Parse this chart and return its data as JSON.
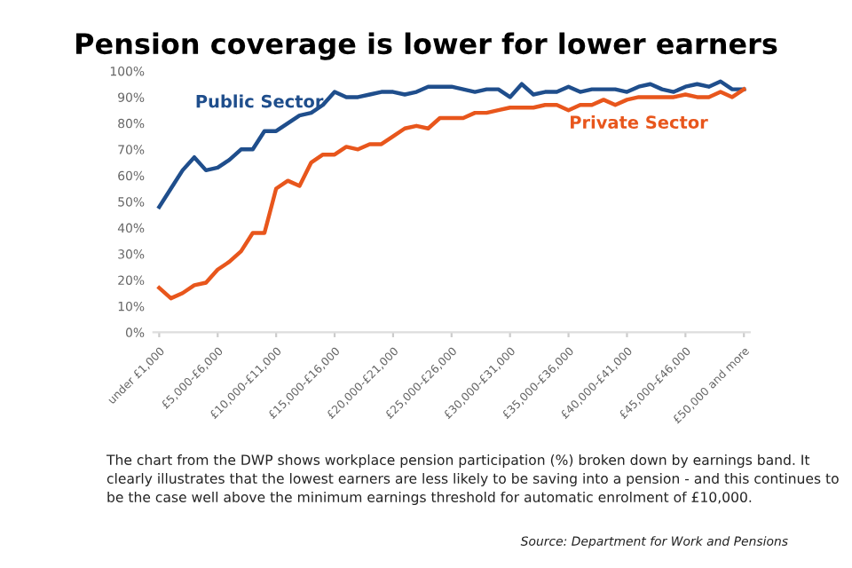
{
  "chart_data": {
    "type": "line",
    "title": "Pension coverage is lower for lower earners",
    "categories": [
      "under £1,000",
      null,
      null,
      null,
      null,
      "£5,000-£6,000",
      null,
      null,
      null,
      null,
      "£10,000-£11,000",
      null,
      null,
      null,
      null,
      "£15,000-£16,000",
      null,
      null,
      null,
      null,
      "£20,000-£21,000",
      null,
      null,
      null,
      null,
      "£25,000-£26,000",
      null,
      null,
      null,
      null,
      "£30,000-£31,000",
      null,
      null,
      null,
      null,
      "£35,000-£36,000",
      null,
      null,
      null,
      null,
      "£40,000-£41,000",
      null,
      null,
      null,
      null,
      "£45,000-£46,000",
      null,
      null,
      null,
      null,
      "£50,000 and more"
    ],
    "series": [
      {
        "name": "Public Sector",
        "color": "#1f4e8c",
        "values": [
          48,
          55,
          62,
          67,
          62,
          63,
          66,
          70,
          70,
          77,
          77,
          80,
          83,
          84,
          87,
          92,
          90,
          90,
          91,
          92,
          92,
          91,
          92,
          94,
          94,
          94,
          93,
          92,
          93,
          93,
          90,
          95,
          91,
          92,
          92,
          94,
          92,
          93,
          93,
          93,
          92,
          94,
          95,
          93,
          92,
          94,
          95,
          94,
          96,
          93,
          93
        ]
      },
      {
        "name": "Private Sector",
        "color": "#e8561c",
        "values": [
          17,
          13,
          15,
          18,
          19,
          24,
          27,
          31,
          38,
          38,
          55,
          58,
          56,
          65,
          68,
          68,
          71,
          70,
          72,
          72,
          75,
          78,
          79,
          78,
          82,
          82,
          82,
          84,
          84,
          85,
          86,
          86,
          86,
          87,
          87,
          85,
          87,
          87,
          89,
          87,
          89,
          90,
          90,
          90,
          90,
          91,
          90,
          90,
          92,
          90,
          93
        ]
      }
    ],
    "ylim": [
      0,
      100
    ],
    "yticks": [
      {
        "value": 0,
        "label": "0%"
      },
      {
        "value": 10,
        "label": "10%"
      },
      {
        "value": 20,
        "label": "20%"
      },
      {
        "value": 30,
        "label": "30%"
      },
      {
        "value": 40,
        "label": "40%"
      },
      {
        "value": 50,
        "label": "50%"
      },
      {
        "value": 60,
        "label": "60%"
      },
      {
        "value": 70,
        "label": "70%"
      },
      {
        "value": 80,
        "label": "80%"
      },
      {
        "value": 90,
        "label": "90%"
      },
      {
        "value": 100,
        "label": "100%"
      }
    ],
    "grid": false,
    "legend": false,
    "marker": "none",
    "line_style": "solid",
    "annotations": [
      "The chart from the DWP shows workplace pension participation (%) broken down by earnings band. It clearly illustrates that the lowest earners are less likely to be saving into a pension - and this continues to be the case well above the minimum earnings threshold for automatic enrolment of £10,000.",
      "Source: Department for Work and Pensions"
    ]
  }
}
